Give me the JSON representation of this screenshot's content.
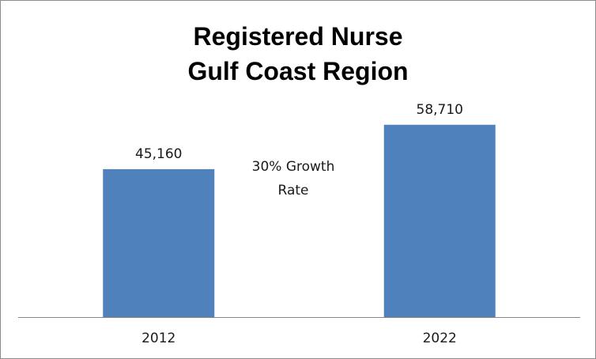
{
  "chart_data": {
    "type": "bar",
    "title": [
      "Registered Nurse",
      "Gulf Coast Region"
    ],
    "xlabel": "",
    "ylabel": "",
    "categories": [
      "2012",
      "2022"
    ],
    "values": [
      45160,
      58710
    ],
    "value_labels": [
      "45,160",
      "58,710"
    ],
    "ylim": [
      0,
      70000
    ],
    "grid": false,
    "legend": "none",
    "bar_color": "#4f81bd",
    "axis_color": "#868686",
    "annotation": [
      "30% Growth",
      "Rate"
    ]
  }
}
